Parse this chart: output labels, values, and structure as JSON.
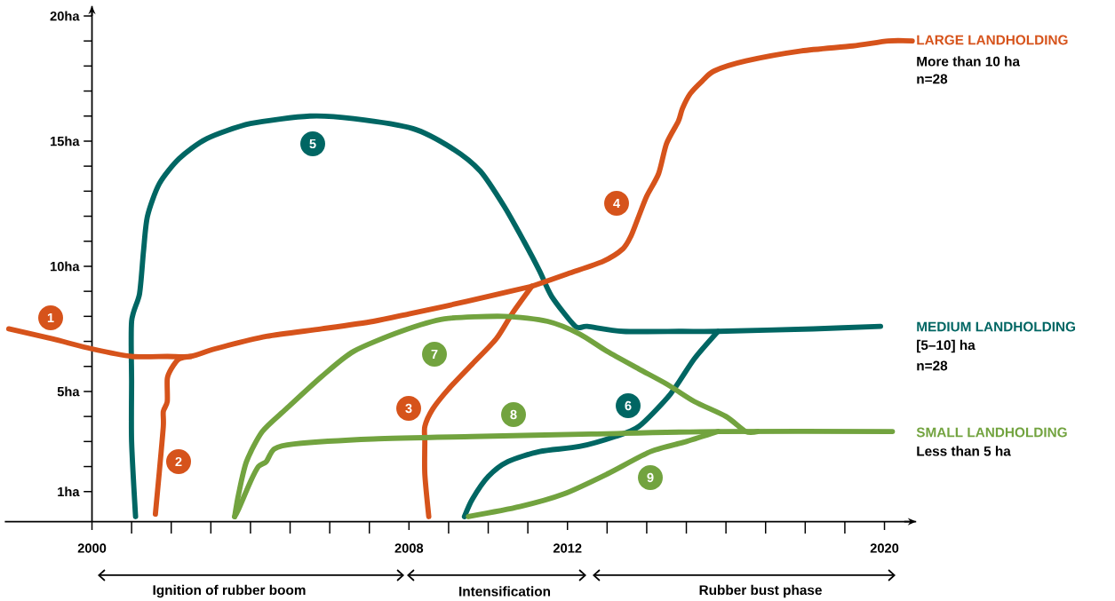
{
  "chart_data": {
    "type": "line",
    "xlim": [
      1997.8,
      2020.8
    ],
    "ylim": [
      -0.2,
      20.4
    ],
    "xticks": [
      2000,
      {
        "value": 2001,
        "label": null
      },
      {
        "value": 2002,
        "label": null
      },
      {
        "value": 2003,
        "label": null
      },
      {
        "value": 2004,
        "label": null
      },
      {
        "value": 2005,
        "label": null
      },
      {
        "value": 2006,
        "label": null
      },
      {
        "value": 2007,
        "label": null
      },
      2008,
      {
        "value": 2009,
        "label": null
      },
      {
        "value": 2010,
        "label": null
      },
      {
        "value": 2011,
        "label": null
      },
      2012,
      {
        "value": 2013,
        "label": null
      },
      {
        "value": 2014,
        "label": null
      },
      {
        "value": 2015,
        "label": null
      },
      {
        "value": 2016,
        "label": null
      },
      {
        "value": 2017,
        "label": null
      },
      {
        "value": 2018,
        "label": null
      },
      {
        "value": 2019,
        "label": null
      },
      2020
    ],
    "yticks": [
      {
        "value": 1,
        "label": "1ha"
      },
      {
        "value": 5,
        "label": "5ha"
      },
      {
        "value": 10,
        "label": "10ha"
      },
      {
        "value": 15,
        "label": "15ha"
      },
      {
        "value": 20,
        "label": "20ha"
      }
    ],
    "series": [
      {
        "name": "1",
        "color": "#d6531b",
        "x": [
          1997.9,
          1999.0,
          2000.0,
          2001.0,
          2001.9,
          2002.5,
          2003.1,
          2004.4,
          2005.8,
          2007.1,
          2008.0,
          2008.9,
          2010.0,
          2011.1
        ],
        "values": [
          7.5,
          7.1,
          6.7,
          6.4,
          6.4,
          6.4,
          6.7,
          7.2,
          7.5,
          7.8,
          8.1,
          8.4,
          8.8,
          9.2
        ]
      },
      {
        "name": "2",
        "color": "#d6531b",
        "x": [
          2001.6,
          2001.7,
          2001.8,
          2001.8,
          2001.9,
          2001.9,
          2002.0,
          2002.2,
          2002.5
        ],
        "values": [
          0.1,
          1.8,
          3.6,
          4.2,
          4.6,
          5.5,
          5.9,
          6.3,
          6.4
        ]
      },
      {
        "name": "3",
        "color": "#d6531b",
        "x": [
          2008.5,
          2008.4,
          2008.4,
          2008.4,
          2008.6,
          2009.0,
          2009.6,
          2010.2,
          2010.6,
          2011.1
        ],
        "values": [
          0.0,
          1.7,
          3.0,
          3.6,
          4.3,
          5.1,
          6.1,
          7.1,
          8.1,
          9.2
        ]
      },
      {
        "name": "4",
        "color": "#d6531b",
        "x": [
          2011.1,
          2012.0,
          2012.9,
          2013.4,
          2013.6,
          2013.8,
          2014.0,
          2014.3,
          2014.5,
          2014.8,
          2014.9,
          2015.1,
          2015.4,
          2015.7,
          2016.5,
          2017.9,
          2019.2,
          2020.1,
          2020.7
        ],
        "values": [
          9.2,
          9.7,
          10.2,
          10.7,
          11.2,
          12.0,
          12.8,
          13.7,
          14.9,
          15.8,
          16.3,
          16.9,
          17.4,
          17.8,
          18.2,
          18.6,
          18.8,
          19.0,
          19.0
        ]
      },
      {
        "name": "5",
        "color": "#006663",
        "x": [
          2001.1,
          2001.0,
          2001.0,
          2001.0,
          2001.2,
          2001.3,
          2001.4,
          2001.7,
          2002.2,
          2002.9,
          2004.0,
          2005.5,
          2006.6,
          2008.1,
          2009.1,
          2009.8,
          2010.4,
          2010.9,
          2011.3,
          2011.6,
          2012.2,
          2012.5,
          2013.4,
          2014.9,
          2015.8,
          2018.2,
          2019.9
        ],
        "values": [
          0.0,
          3.0,
          5.4,
          7.8,
          8.9,
          10.6,
          12.0,
          13.3,
          14.3,
          15.1,
          15.7,
          16.0,
          15.9,
          15.5,
          14.7,
          13.8,
          12.4,
          11.0,
          9.8,
          8.8,
          7.6,
          7.6,
          7.4,
          7.4,
          7.4,
          7.5,
          7.6
        ]
      },
      {
        "name": "6",
        "color": "#006663",
        "x": [
          2009.4,
          2009.6,
          2010.0,
          2010.5,
          2011.3,
          2012.3,
          2013.2,
          2013.8,
          2014.6,
          2015.2,
          2015.8
        ],
        "values": [
          0.0,
          0.7,
          1.6,
          2.2,
          2.6,
          2.8,
          3.2,
          3.6,
          4.9,
          6.3,
          7.4
        ]
      },
      {
        "name": "7",
        "color": "#72a33f",
        "x": [
          2003.6,
          2003.7,
          2003.9,
          2004.3,
          2004.9,
          2005.8,
          2006.6,
          2007.8,
          2008.9,
          2010.4,
          2011.5,
          2012.3,
          2013.0,
          2013.8,
          2014.5,
          2015.2,
          2016.0,
          2016.5,
          2016.8
        ],
        "values": [
          0.0,
          0.9,
          2.2,
          3.4,
          4.3,
          5.6,
          6.6,
          7.4,
          7.9,
          8.0,
          7.8,
          7.3,
          6.6,
          5.9,
          5.3,
          4.6,
          4.0,
          3.4,
          3.4
        ]
      },
      {
        "name": "8",
        "color": "#72a33f",
        "x": [
          2003.6,
          2003.7,
          2004.0,
          2004.2,
          2004.4,
          2004.6,
          2005.1,
          2007.1,
          2009.6,
          2012.6,
          2015.8,
          2020.2
        ],
        "values": [
          0.0,
          0.3,
          1.4,
          2.0,
          2.2,
          2.7,
          2.9,
          3.1,
          3.2,
          3.3,
          3.4,
          3.4
        ]
      },
      {
        "name": "9",
        "color": "#72a33f",
        "x": [
          2009.5,
          2010.8,
          2011.9,
          2013.0,
          2014.1,
          2015.0,
          2015.8
        ],
        "values": [
          0.0,
          0.4,
          0.9,
          1.7,
          2.6,
          3.0,
          3.4
        ]
      }
    ],
    "annotations": [
      "LARGE LANDHOLDING",
      "More than 10 ha",
      "n=28",
      "MEDIUM LANDHOLDING",
      "[5–10] ha",
      "n=28",
      "SMALL LANDHOLDING",
      "Less than 5 ha",
      "Ignition of rubber boom",
      "Intensification",
      "Rubber bust phase"
    ]
  }
}
